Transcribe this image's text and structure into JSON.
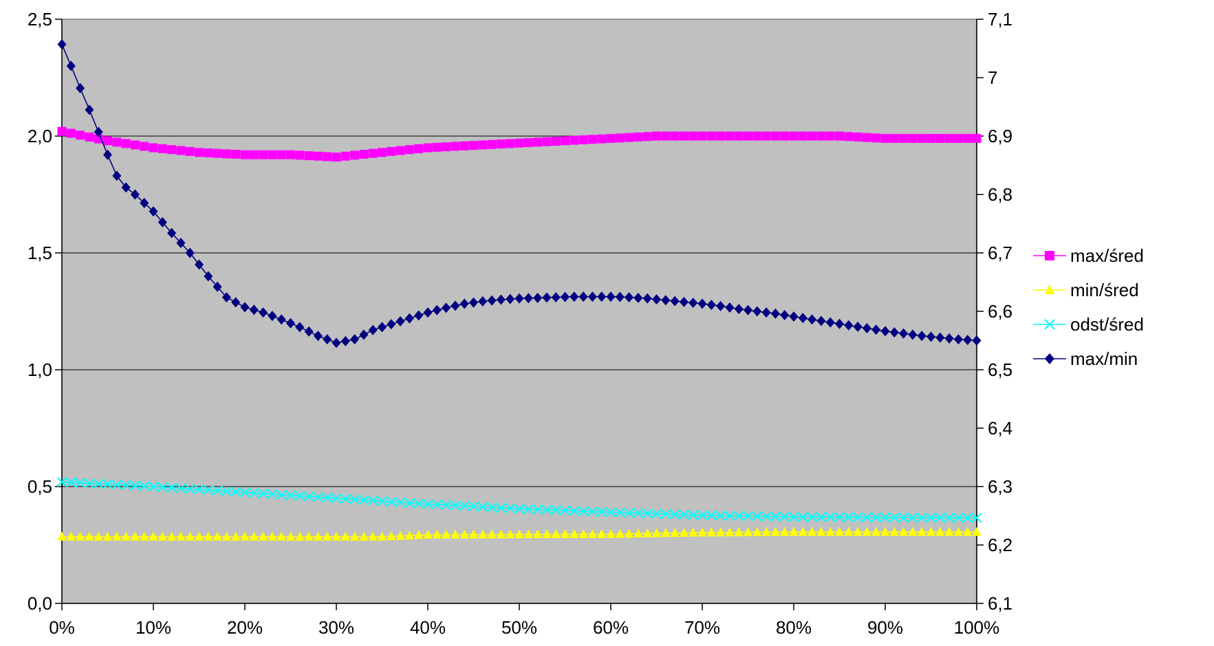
{
  "chart_data": {
    "type": "line",
    "title": "",
    "xlabel": "",
    "ylabel": "",
    "y2label": "",
    "xlim": [
      0,
      100
    ],
    "ylim": [
      0,
      2.5
    ],
    "y2lim": [
      6.1,
      7.1
    ],
    "grid": "horizontal major gridlines, left axis",
    "legend_position": "right",
    "x_tick_labels": [
      "0%",
      "10%",
      "20%",
      "30%",
      "40%",
      "50%",
      "60%",
      "70%",
      "80%",
      "90%",
      "100%"
    ],
    "y_tick_labels": [
      "0,0",
      "0,5",
      "1,0",
      "1,5",
      "2,0",
      "2,5"
    ],
    "y2_tick_labels": [
      "6,1",
      "6,2",
      "6,3",
      "6,4",
      "6,5",
      "6,6",
      "6,7",
      "6,8",
      "6,9",
      "7",
      "7,1"
    ],
    "series": [
      {
        "name": "max/śred",
        "axis": "left",
        "color": "#ff00ff",
        "marker": "square",
        "x": [
          0,
          5,
          10,
          15,
          20,
          25,
          30,
          35,
          40,
          45,
          50,
          55,
          60,
          65,
          70,
          75,
          80,
          85,
          90,
          95,
          100
        ],
        "y": [
          2.02,
          1.98,
          1.95,
          1.93,
          1.92,
          1.92,
          1.91,
          1.93,
          1.95,
          1.96,
          1.97,
          1.98,
          1.99,
          2.0,
          2.0,
          2.0,
          2.0,
          2.0,
          1.99,
          1.99,
          1.99
        ]
      },
      {
        "name": "min/śred",
        "axis": "left",
        "color": "#ffff00",
        "marker": "triangle",
        "x": [
          0,
          10,
          20,
          30,
          35,
          40,
          50,
          60,
          70,
          80,
          90,
          100
        ],
        "y": [
          0.285,
          0.285,
          0.285,
          0.285,
          0.285,
          0.293,
          0.295,
          0.296,
          0.303,
          0.305,
          0.305,
          0.305
        ]
      },
      {
        "name": "odst/śred",
        "axis": "left",
        "color": "#00ffff",
        "marker": "x",
        "x": [
          0,
          10,
          20,
          30,
          40,
          50,
          60,
          70,
          80,
          90,
          100
        ],
        "y": [
          0.52,
          0.5,
          0.475,
          0.45,
          0.425,
          0.405,
          0.39,
          0.377,
          0.37,
          0.368,
          0.366
        ]
      },
      {
        "name": "max/min",
        "axis": "right",
        "color": "#000080",
        "marker": "diamond",
        "x": [
          0,
          1,
          2,
          3,
          4,
          5,
          6,
          7,
          8,
          10,
          12,
          14,
          16,
          18,
          20,
          22,
          24,
          26,
          28,
          30,
          32,
          34,
          36,
          38,
          40,
          42,
          44,
          46,
          48,
          50,
          52,
          54,
          56,
          58,
          60,
          62,
          64,
          66,
          68,
          70,
          72,
          74,
          76,
          78,
          80,
          82,
          84,
          86,
          88,
          90,
          92,
          94,
          96,
          98,
          100
        ],
        "y": [
          7.057,
          7.02,
          6.982,
          6.945,
          6.907,
          6.868,
          6.832,
          6.812,
          6.8,
          6.771,
          6.734,
          6.7,
          6.66,
          6.624,
          6.607,
          6.598,
          6.586,
          6.573,
          6.558,
          6.546,
          6.552,
          6.568,
          6.578,
          6.588,
          6.598,
          6.606,
          6.613,
          6.617,
          6.62,
          6.622,
          6.623,
          6.624,
          6.625,
          6.625,
          6.625,
          6.624,
          6.622,
          6.619,
          6.616,
          6.613,
          6.609,
          6.604,
          6.6,
          6.596,
          6.591,
          6.586,
          6.581,
          6.576,
          6.571,
          6.566,
          6.562,
          6.558,
          6.555,
          6.552,
          6.55
        ]
      }
    ]
  }
}
